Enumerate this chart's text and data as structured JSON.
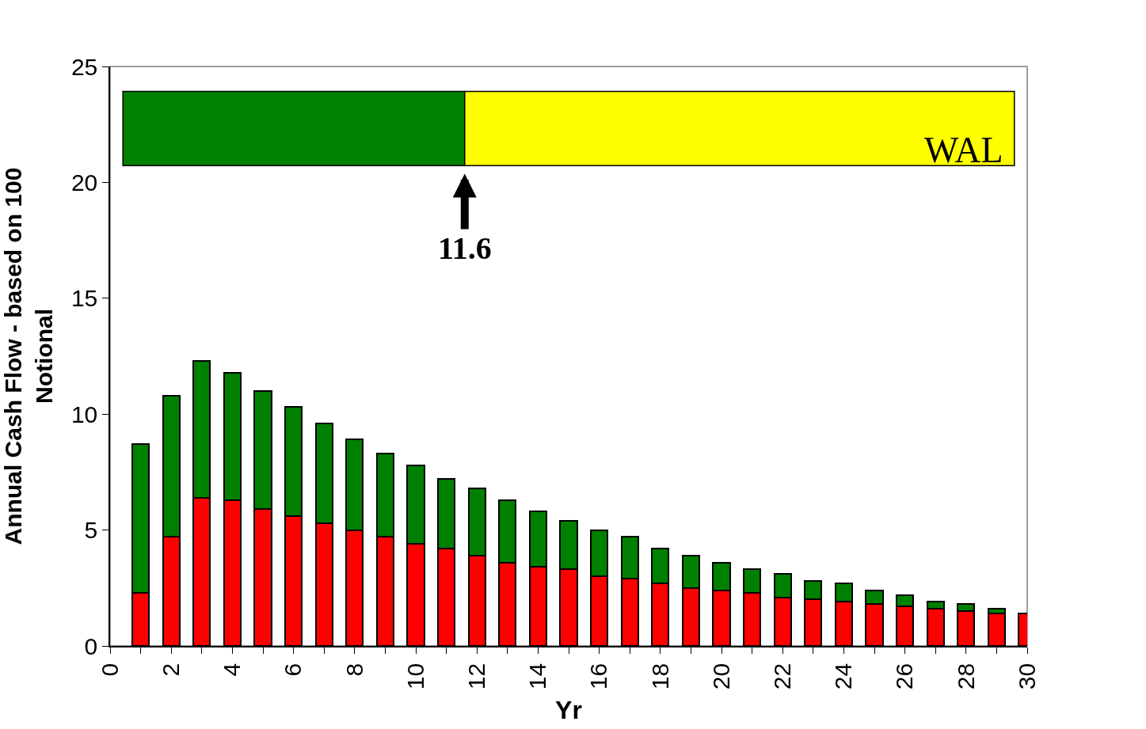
{
  "chart_data": {
    "type": "bar",
    "stacked": true,
    "xlabel": "Yr",
    "ylabel": "Annual Cash Flow - based on 100 Notional",
    "x": [
      1,
      2,
      3,
      4,
      5,
      6,
      7,
      8,
      9,
      10,
      11,
      12,
      13,
      14,
      15,
      16,
      17,
      18,
      19,
      20,
      21,
      22,
      23,
      24,
      25,
      26,
      27,
      28,
      29,
      30
    ],
    "series": [
      {
        "color": "#ff0000",
        "values": [
          2.3,
          4.7,
          6.4,
          6.3,
          5.9,
          5.6,
          5.3,
          5.0,
          4.7,
          4.4,
          4.2,
          3.9,
          3.6,
          3.4,
          3.3,
          3.0,
          2.9,
          2.7,
          2.5,
          2.4,
          2.3,
          2.1,
          2.0,
          1.9,
          1.8,
          1.7,
          1.6,
          1.5,
          1.4,
          1.4
        ]
      },
      {
        "color": "#008000",
        "values": [
          6.4,
          6.1,
          5.9,
          5.5,
          5.1,
          4.7,
          4.3,
          3.9,
          3.6,
          3.4,
          3.0,
          2.9,
          2.7,
          2.4,
          2.1,
          2.0,
          1.8,
          1.5,
          1.4,
          1.2,
          1.0,
          1.0,
          0.8,
          0.8,
          0.6,
          0.5,
          0.3,
          0.3,
          0.2,
          0.0
        ]
      }
    ],
    "xlim": [
      0,
      30
    ],
    "xticks": [
      0,
      {
        "value": 1,
        "label": null
      },
      2,
      {
        "value": 3,
        "label": null
      },
      4,
      {
        "value": 5,
        "label": null
      },
      6,
      {
        "value": 7,
        "label": null
      },
      8,
      {
        "value": 9,
        "label": null
      },
      10,
      {
        "value": 11,
        "label": null
      },
      12,
      {
        "value": 13,
        "label": null
      },
      14,
      {
        "value": 15,
        "label": null
      },
      16,
      {
        "value": 17,
        "label": null
      },
      18,
      {
        "value": 19,
        "label": null
      },
      20,
      {
        "value": 21,
        "label": null
      },
      22,
      {
        "value": 23,
        "label": null
      },
      24,
      {
        "value": 25,
        "label": null
      },
      26,
      {
        "value": 27,
        "label": null
      },
      28,
      {
        "value": 29,
        "label": null
      },
      30
    ],
    "ylim": [
      0,
      25
    ],
    "yticks": [
      0,
      5,
      10,
      15,
      20,
      25
    ],
    "grid": false,
    "annotations": [
      "WAL"
    ],
    "ref_lines": [
      {
        "axis": "x",
        "value": 11.6,
        "label": "11.6"
      }
    ]
  }
}
